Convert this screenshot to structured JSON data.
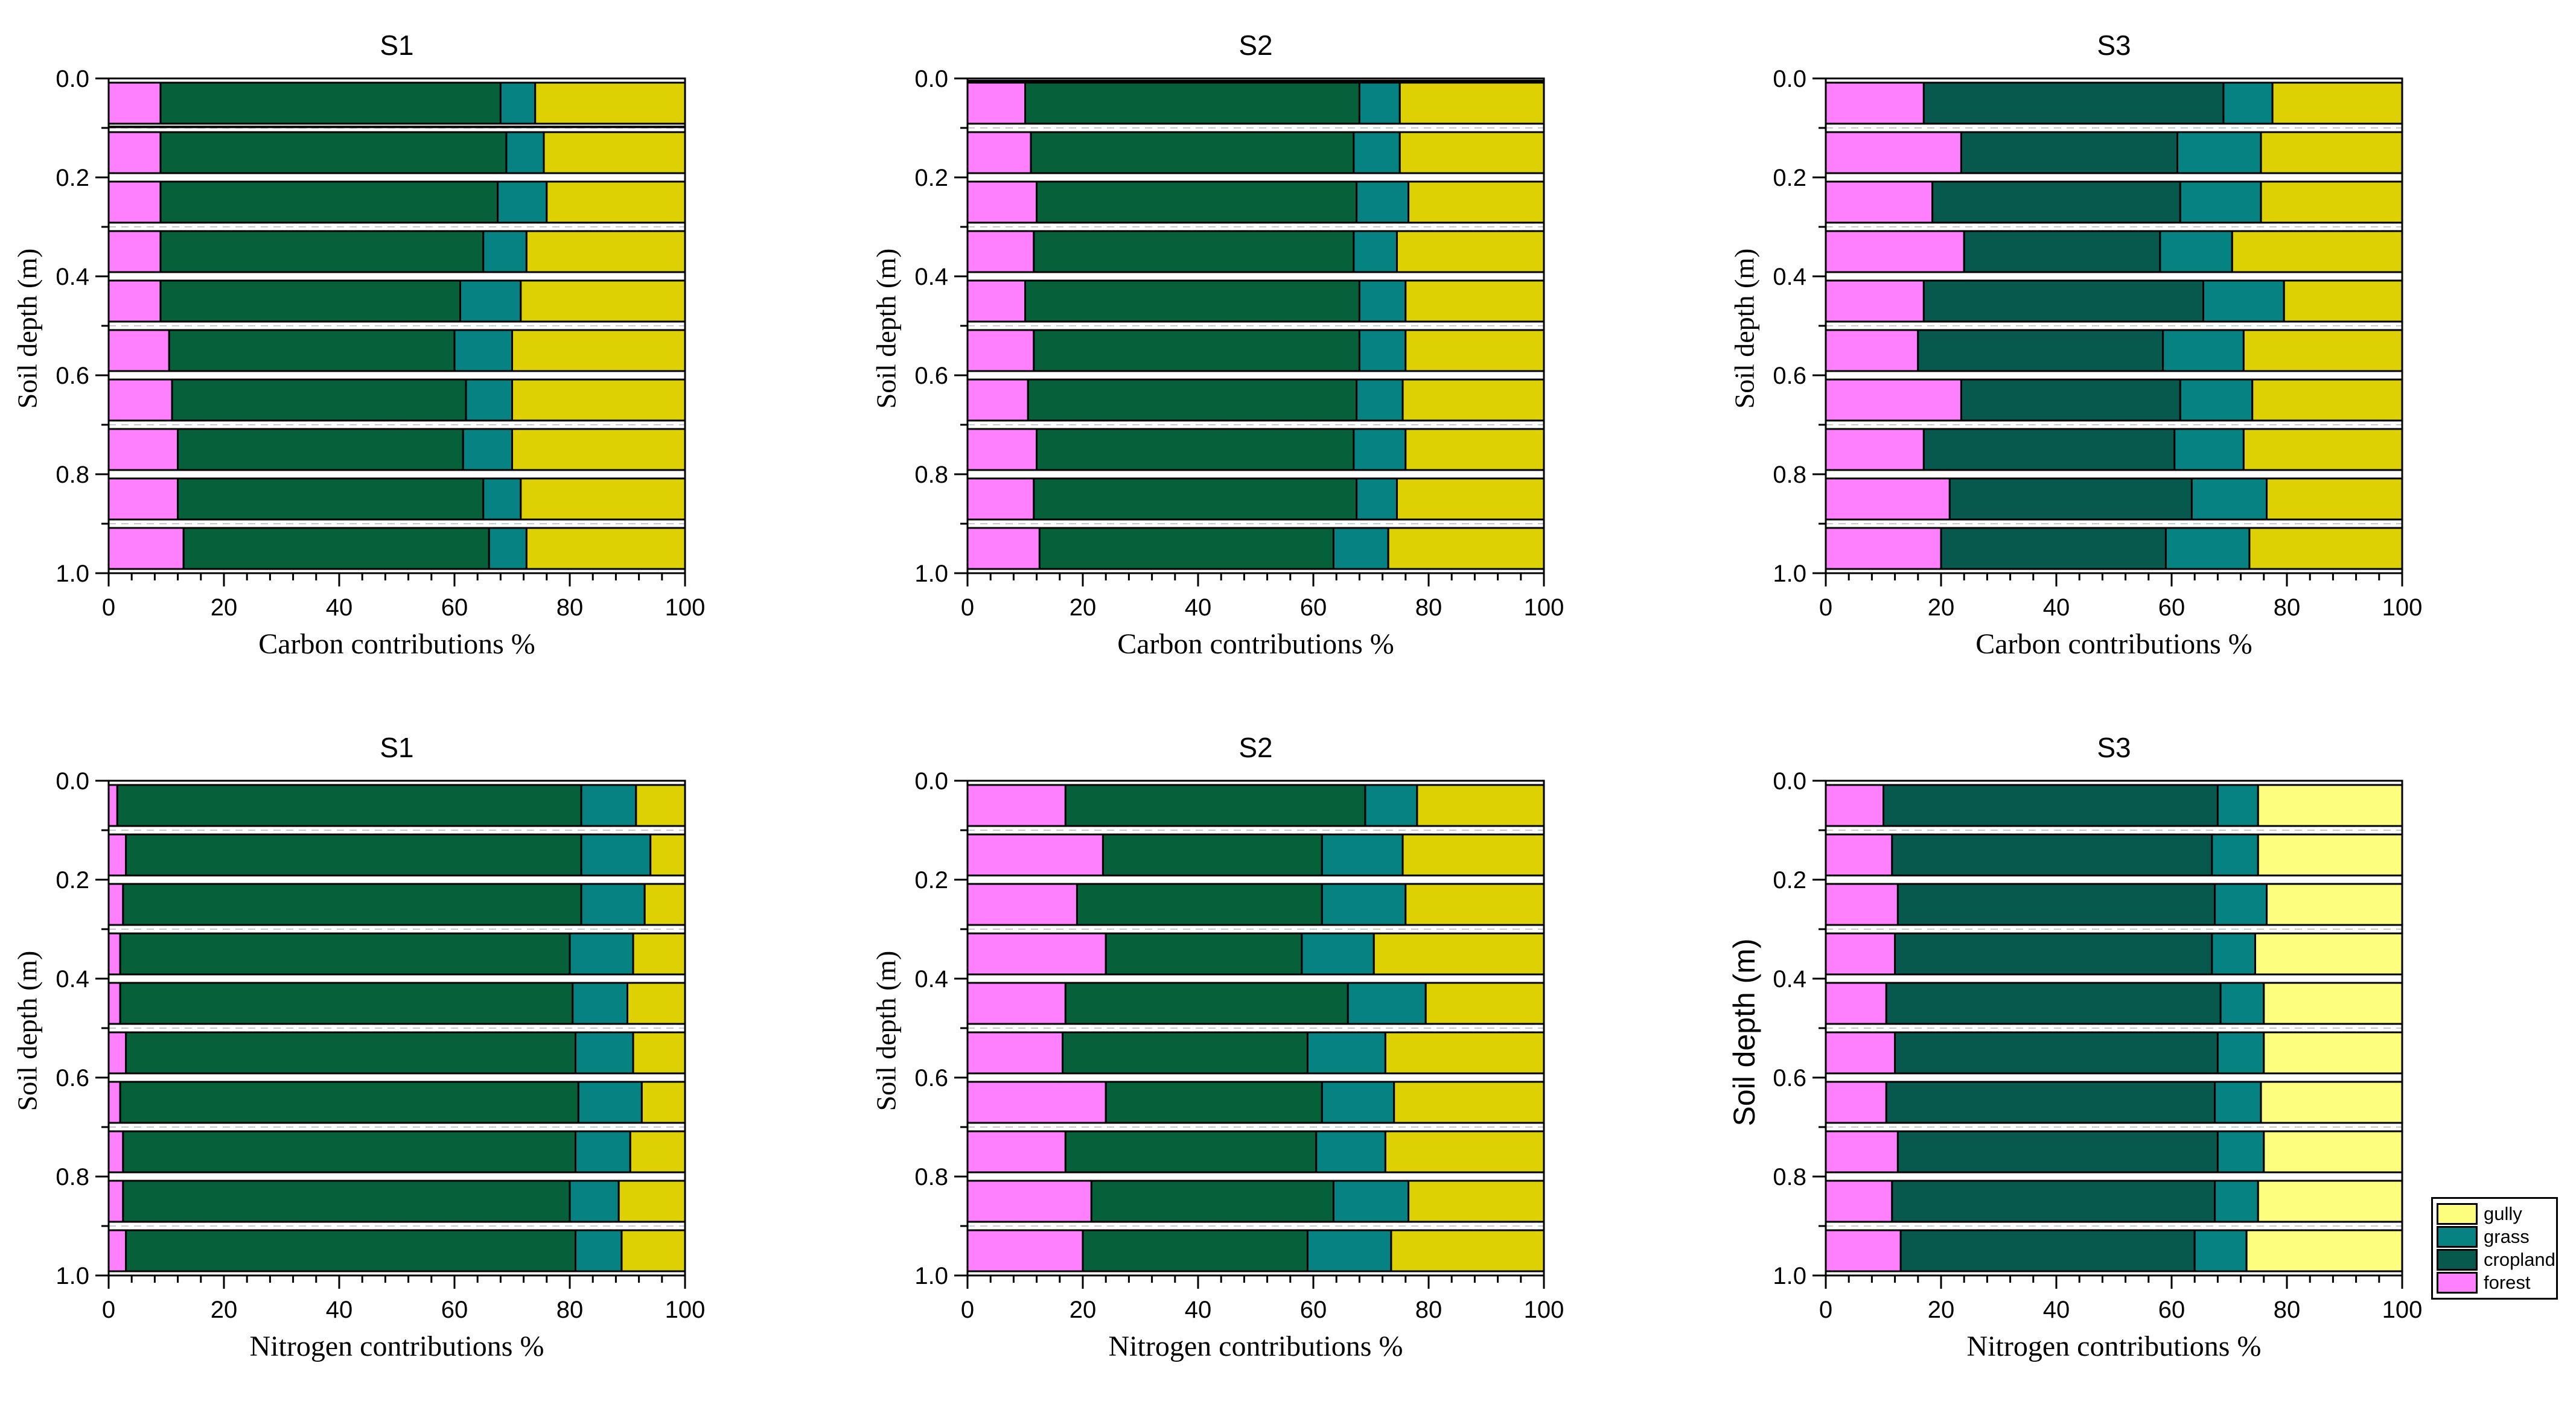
{
  "page": {
    "background": "#ffffff"
  },
  "legend": {
    "entries": [
      {
        "label": "gully",
        "color": "#FDFD7E"
      },
      {
        "label": "grass",
        "color": "#078282"
      },
      {
        "label": "cropland",
        "color": "#07594E"
      },
      {
        "label": "forest",
        "color": "#FF80FF"
      }
    ]
  },
  "chart_data": [
    {
      "id": "carbon-s1",
      "type": "bar",
      "stacked": true,
      "orientation": "horizontal",
      "title": "S1",
      "xlabel": "Carbon contributions %",
      "ylabel": "Soil depth (m)",
      "ylabel_style": "serif",
      "xlim": [
        0,
        100
      ],
      "ylim": [
        0.0,
        1.0
      ],
      "x_ticks": [
        0,
        20,
        40,
        60,
        80,
        100
      ],
      "x_minor_step": 4,
      "y_ticks": [
        0.0,
        0.2,
        0.4,
        0.6,
        0.8,
        1.0
      ],
      "y_minor_gridlines": [
        0.1,
        0.3,
        0.5,
        0.7,
        0.9
      ],
      "depth_centers": [
        0.05,
        0.15,
        0.25,
        0.35,
        0.45,
        0.55,
        0.65,
        0.75,
        0.85,
        0.95
      ],
      "extra_line_depths": [
        0.098
      ],
      "series": [
        {
          "name": "forest",
          "color": "#FF80FF",
          "values": [
            9,
            9,
            9,
            9,
            9,
            10.5,
            11,
            12,
            12,
            13
          ]
        },
        {
          "name": "cropland",
          "color": "#066039",
          "values": [
            59,
            60,
            58.5,
            56,
            52,
            49.5,
            51,
            49.5,
            53,
            53
          ]
        },
        {
          "name": "grass",
          "color": "#078282",
          "values": [
            6,
            6.5,
            8.5,
            7.5,
            10.5,
            10,
            8,
            8.5,
            6.5,
            6.5
          ]
        },
        {
          "name": "gully",
          "color": "#DDD104",
          "values": [
            26,
            24.5,
            24,
            27.5,
            28.5,
            30,
            30,
            30,
            28.5,
            27.5
          ]
        }
      ]
    },
    {
      "id": "carbon-s2",
      "type": "bar",
      "stacked": true,
      "orientation": "horizontal",
      "title": "S2",
      "xlabel": "Carbon contributions %",
      "ylabel": "Soil depth (m)",
      "ylabel_style": "serif",
      "xlim": [
        0,
        100
      ],
      "ylim": [
        0.0,
        1.0
      ],
      "x_ticks": [
        0,
        20,
        40,
        60,
        80,
        100
      ],
      "x_minor_step": 4,
      "y_ticks": [
        0.0,
        0.2,
        0.4,
        0.6,
        0.8,
        1.0
      ],
      "y_minor_gridlines": [
        0.1,
        0.3,
        0.5,
        0.7,
        0.9
      ],
      "depth_centers": [
        0.05,
        0.15,
        0.25,
        0.35,
        0.45,
        0.55,
        0.65,
        0.75,
        0.85,
        0.95
      ],
      "extra_line_depths": [
        0.005
      ],
      "series": [
        {
          "name": "forest",
          "color": "#FF80FF",
          "values": [
            10,
            11,
            12,
            11.5,
            10,
            11.5,
            10.5,
            12,
            11.5,
            12.5
          ]
        },
        {
          "name": "cropland",
          "color": "#066039",
          "values": [
            58,
            56,
            55.5,
            55.5,
            58,
            56.5,
            57,
            55,
            56,
            51
          ]
        },
        {
          "name": "grass",
          "color": "#078282",
          "values": [
            7,
            8,
            9,
            7.5,
            8,
            8,
            8,
            9,
            7,
            9.5
          ]
        },
        {
          "name": "gully",
          "color": "#DDD104",
          "values": [
            25,
            25,
            23.5,
            25.5,
            24,
            24,
            24.5,
            24,
            25.5,
            27
          ]
        }
      ]
    },
    {
      "id": "carbon-s3",
      "type": "bar",
      "stacked": true,
      "orientation": "horizontal",
      "title": "S3",
      "xlabel": "Carbon contributions %",
      "ylabel": "Soil depth (m)",
      "ylabel_style": "serif",
      "xlim": [
        0,
        100
      ],
      "ylim": [
        0.0,
        1.0
      ],
      "x_ticks": [
        0,
        20,
        40,
        60,
        80,
        100
      ],
      "x_minor_step": 4,
      "y_ticks": [
        0.0,
        0.2,
        0.4,
        0.6,
        0.8,
        1.0
      ],
      "y_minor_gridlines": [
        0.1,
        0.3,
        0.5,
        0.7,
        0.9
      ],
      "depth_centers": [
        0.05,
        0.15,
        0.25,
        0.35,
        0.45,
        0.55,
        0.65,
        0.75,
        0.85,
        0.95
      ],
      "extra_line_depths": [],
      "series": [
        {
          "name": "forest",
          "color": "#FF80FF",
          "values": [
            17,
            23.5,
            18.5,
            24,
            17,
            16,
            23.5,
            17,
            21.5,
            20
          ]
        },
        {
          "name": "cropland",
          "color": "#07594E",
          "values": [
            52,
            37.5,
            43,
            34,
            48.5,
            42.5,
            38,
            43.5,
            42,
            39
          ]
        },
        {
          "name": "grass",
          "color": "#078282",
          "values": [
            8.5,
            14.5,
            14,
            12.5,
            14,
            14,
            12.5,
            12,
            13,
            14.5
          ]
        },
        {
          "name": "gully",
          "color": "#DDD104",
          "values": [
            22.5,
            24.5,
            24.5,
            29.5,
            20.5,
            27.5,
            26,
            27.5,
            23.5,
            26.5
          ]
        }
      ]
    },
    {
      "id": "nitrogen-s1",
      "type": "bar",
      "stacked": true,
      "orientation": "horizontal",
      "title": "S1",
      "xlabel": "Nitrogen contributions %",
      "ylabel": "Soil depth (m)",
      "ylabel_style": "serif",
      "xlim": [
        0,
        100
      ],
      "ylim": [
        0.0,
        1.0
      ],
      "x_ticks": [
        0,
        20,
        40,
        60,
        80,
        100
      ],
      "x_minor_step": 4,
      "y_ticks": [
        0.0,
        0.2,
        0.4,
        0.6,
        0.8,
        1.0
      ],
      "y_minor_gridlines": [
        0.1,
        0.3,
        0.5,
        0.7,
        0.9
      ],
      "depth_centers": [
        0.05,
        0.15,
        0.25,
        0.35,
        0.45,
        0.55,
        0.65,
        0.75,
        0.85,
        0.95
      ],
      "extra_line_depths": [],
      "series": [
        {
          "name": "forest",
          "color": "#FF80FF",
          "values": [
            1.5,
            3,
            2.5,
            2,
            2,
            3,
            2,
            2.5,
            2.5,
            3
          ]
        },
        {
          "name": "cropland",
          "color": "#066039",
          "values": [
            80.5,
            79,
            79.5,
            78,
            78.5,
            78,
            79.5,
            78.5,
            77.5,
            78
          ]
        },
        {
          "name": "grass",
          "color": "#078282",
          "values": [
            9.5,
            12,
            11,
            11,
            9.5,
            10,
            11,
            9.5,
            8.5,
            8
          ]
        },
        {
          "name": "gully",
          "color": "#DDD104",
          "values": [
            8.5,
            6,
            7,
            9,
            10,
            9,
            7.5,
            9.5,
            11.5,
            11
          ]
        }
      ]
    },
    {
      "id": "nitrogen-s2",
      "type": "bar",
      "stacked": true,
      "orientation": "horizontal",
      "title": "S2",
      "xlabel": "Nitrogen contributions %",
      "ylabel": "Soil depth (m)",
      "ylabel_style": "serif",
      "xlim": [
        0,
        100
      ],
      "ylim": [
        0.0,
        1.0
      ],
      "x_ticks": [
        0,
        20,
        40,
        60,
        80,
        100
      ],
      "x_minor_step": 4,
      "y_ticks": [
        0.0,
        0.2,
        0.4,
        0.6,
        0.8,
        1.0
      ],
      "y_minor_gridlines": [
        0.1,
        0.3,
        0.5,
        0.7,
        0.9
      ],
      "depth_centers": [
        0.05,
        0.15,
        0.25,
        0.35,
        0.45,
        0.55,
        0.65,
        0.75,
        0.85,
        0.95
      ],
      "extra_line_depths": [],
      "series": [
        {
          "name": "forest",
          "color": "#FF80FF",
          "values": [
            17,
            23.5,
            19,
            24,
            17,
            16.5,
            24,
            17,
            21.5,
            20
          ]
        },
        {
          "name": "cropland",
          "color": "#066039",
          "values": [
            52,
            38,
            42.5,
            34,
            49,
            42.5,
            37.5,
            43.5,
            42,
            39
          ]
        },
        {
          "name": "grass",
          "color": "#078282",
          "values": [
            9,
            14,
            14.5,
            12.5,
            13.5,
            13.5,
            12.5,
            12,
            13,
            14.5
          ]
        },
        {
          "name": "gully",
          "color": "#DDD104",
          "values": [
            22,
            24.5,
            24,
            29.5,
            20.5,
            27.5,
            26,
            27.5,
            23.5,
            26.5
          ]
        }
      ]
    },
    {
      "id": "nitrogen-s3",
      "type": "bar",
      "stacked": true,
      "orientation": "horizontal",
      "title": "S3",
      "xlabel": "Nitrogen contributions %",
      "ylabel": "Soil depth (m)",
      "ylabel_style": "sans",
      "xlim": [
        0,
        100
      ],
      "ylim": [
        0.0,
        1.0
      ],
      "x_ticks": [
        0,
        20,
        40,
        60,
        80,
        100
      ],
      "x_minor_step": 4,
      "y_ticks": [
        0.0,
        0.2,
        0.4,
        0.6,
        0.8,
        1.0
      ],
      "y_minor_gridlines": [
        0.1,
        0.3,
        0.5,
        0.7,
        0.9
      ],
      "depth_centers": [
        0.05,
        0.15,
        0.25,
        0.35,
        0.45,
        0.55,
        0.65,
        0.75,
        0.85,
        0.95
      ],
      "extra_line_depths": [],
      "series": [
        {
          "name": "forest",
          "color": "#FF80FF",
          "values": [
            10,
            11.5,
            12.5,
            12,
            10.5,
            12,
            10.5,
            12.5,
            11.5,
            13
          ]
        },
        {
          "name": "cropland",
          "color": "#07594E",
          "values": [
            58,
            55.5,
            55,
            55,
            58,
            56,
            57,
            55.5,
            56,
            51
          ]
        },
        {
          "name": "grass",
          "color": "#078282",
          "values": [
            7,
            8,
            9,
            7.5,
            7.5,
            8,
            8,
            8,
            7.5,
            9
          ]
        },
        {
          "name": "gully",
          "color": "#FDFD7E",
          "values": [
            25,
            25,
            23.5,
            25.5,
            24,
            24,
            24.5,
            24,
            25,
            27
          ]
        }
      ]
    }
  ]
}
